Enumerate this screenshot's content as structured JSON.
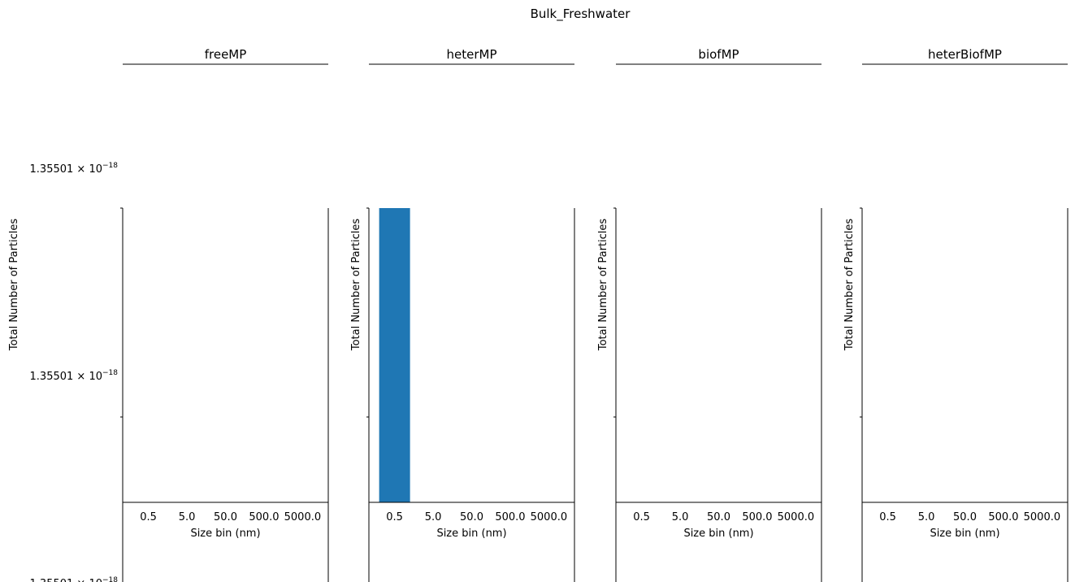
{
  "chart_data": {
    "type": "bar",
    "title": "Bulk_Freshwater",
    "y_tick_mantissa": "1.35501",
    "y_tick_base": "× 10",
    "y_tick_exponent": "−18",
    "panels": [
      {
        "title": "freeMP",
        "xlabel": "Size bin (nm)",
        "ylabel": "Total Number of Particles",
        "categories": [
          "0.5",
          "5.0",
          "50.0",
          "500.0",
          "5000.0"
        ],
        "values": [
          0,
          0,
          0,
          0,
          0
        ]
      },
      {
        "title": "heterMP",
        "xlabel": "Size bin (nm)",
        "ylabel": "Total Number of Particles",
        "categories": [
          "0.5",
          "5.0",
          "50.0",
          "500.0",
          "5000.0"
        ],
        "values": [
          1.35501e-18,
          0,
          0,
          0,
          0
        ]
      },
      {
        "title": "biofMP",
        "xlabel": "Size bin (nm)",
        "ylabel": "Total Number of Particles",
        "categories": [
          "0.5",
          "5.0",
          "50.0",
          "500.0",
          "5000.0"
        ],
        "values": [
          0,
          0,
          0,
          0,
          0
        ]
      },
      {
        "title": "heterBiofMP",
        "xlabel": "Size bin (nm)",
        "ylabel": "Total Number of Particles",
        "categories": [
          "0.5",
          "5.0",
          "50.0",
          "500.0",
          "5000.0"
        ],
        "values": [
          0,
          0,
          0,
          0,
          0
        ]
      }
    ],
    "bar_color": "#1f77b4",
    "grid": false,
    "legend": "none"
  }
}
